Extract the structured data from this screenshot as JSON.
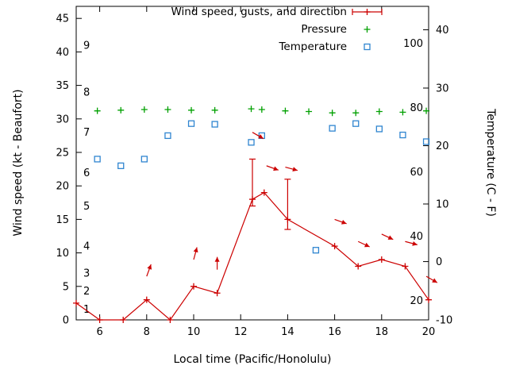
{
  "page": {
    "background": "#ffffff"
  },
  "legend": {
    "items": [
      {
        "label": "Wind speed, gusts, and direction",
        "marker": "errorbar-line",
        "color": "#cc0000"
      },
      {
        "label": "Pressure",
        "marker": "plus",
        "color": "#00a000"
      },
      {
        "label": "Temperature",
        "marker": "open-square",
        "color": "#2f85d0"
      }
    ]
  },
  "chart_data": {
    "type": "line",
    "title": "",
    "xlabel": "Local time (Pacific/Honolulu)",
    "ylabel_left": "Wind speed (kt - Beaufort)",
    "ylabel_right": "Temperature (C - F)",
    "xlim": [
      5,
      20
    ],
    "x_ticks": [
      6,
      8,
      10,
      12,
      14,
      16,
      18,
      20
    ],
    "ylim_left": [
      0,
      46.8
    ],
    "y_ticks_left": [
      0,
      5,
      10,
      15,
      20,
      25,
      30,
      35,
      40,
      45
    ],
    "beaufort_labels": [
      {
        "label": "1",
        "kt": 1.6
      },
      {
        "label": "2",
        "kt": 4.3
      },
      {
        "label": "3",
        "kt": 7
      },
      {
        "label": "4",
        "kt": 11
      },
      {
        "label": "5",
        "kt": 17
      },
      {
        "label": "6",
        "kt": 22
      },
      {
        "label": "7",
        "kt": 28
      },
      {
        "label": "8",
        "kt": 34
      },
      {
        "label": "9",
        "kt": 41
      }
    ],
    "y_ticks_right_celsius": [
      {
        "label": "-10",
        "kt": 0
      },
      {
        "label": "0",
        "kt": 8.7
      },
      {
        "label": "10",
        "kt": 17.3
      },
      {
        "label": "20",
        "kt": 26.0
      },
      {
        "label": "30",
        "kt": 34.6
      },
      {
        "label": "40",
        "kt": 43.3
      }
    ],
    "fahrenheit_labels": [
      {
        "label": "20",
        "kt": 2.9
      },
      {
        "label": "40",
        "kt": 12.5
      },
      {
        "label": "60",
        "kt": 22.1
      },
      {
        "label": "80",
        "kt": 31.7
      },
      {
        "label": "100",
        "kt": 41.3
      }
    ],
    "grid": false,
    "legend_position": "top-right-inside",
    "note": "All series y-values are plotted in left-axis (kt) coordinates as read from the pixels",
    "series": [
      {
        "name": "Wind speed, gusts, and direction",
        "type": "line",
        "marker": "plus",
        "color": "#cc0000",
        "points": [
          [
            5,
            2.5
          ],
          [
            6,
            0
          ],
          [
            7,
            0
          ],
          [
            8,
            3
          ],
          [
            9,
            0
          ],
          [
            10,
            5
          ],
          [
            11,
            4
          ],
          [
            12.5,
            18
          ],
          [
            13,
            19
          ],
          [
            14,
            15
          ],
          [
            16,
            11
          ],
          [
            17,
            8
          ],
          [
            18,
            9
          ],
          [
            19,
            8
          ],
          [
            20,
            3
          ]
        ],
        "gust_bars": [
          {
            "x": 12.5,
            "low": 17,
            "high": 24
          },
          {
            "x": 14,
            "low": 13.5,
            "high": 21
          }
        ],
        "direction_arrows": [
          {
            "x": 8,
            "y": 6.5,
            "angle": 70
          },
          {
            "x": 10,
            "y": 9,
            "angle": 75
          },
          {
            "x": 11,
            "y": 7.5,
            "angle": 90
          },
          {
            "x": 12.5,
            "y": 28,
            "angle": -30
          },
          {
            "x": 13.1,
            "y": 23,
            "angle": -20
          },
          {
            "x": 13.9,
            "y": 22.8,
            "angle": -15
          },
          {
            "x": 16,
            "y": 15,
            "angle": -20
          },
          {
            "x": 17,
            "y": 11.7,
            "angle": -25
          },
          {
            "x": 18,
            "y": 12.8,
            "angle": -25
          },
          {
            "x": 19,
            "y": 11.7,
            "angle": -15
          },
          {
            "x": 19.9,
            "y": 6.5,
            "angle": -30
          }
        ]
      },
      {
        "name": "Pressure",
        "type": "scatter",
        "marker": "plus",
        "color": "#00a000",
        "points": [
          [
            5.9,
            31.2
          ],
          [
            6.9,
            31.3
          ],
          [
            7.9,
            31.4
          ],
          [
            8.9,
            31.4
          ],
          [
            9.9,
            31.3
          ],
          [
            10.9,
            31.3
          ],
          [
            12.45,
            31.5
          ],
          [
            12.9,
            31.4
          ],
          [
            13.9,
            31.2
          ],
          [
            14.9,
            31.1
          ],
          [
            15.9,
            30.9
          ],
          [
            16.9,
            30.9
          ],
          [
            17.9,
            31.1
          ],
          [
            18.9,
            31.0
          ],
          [
            19.9,
            31.2
          ]
        ]
      },
      {
        "name": "Temperature",
        "type": "scatter",
        "marker": "open-square",
        "color": "#2f85d0",
        "points": [
          [
            5.9,
            24
          ],
          [
            6.9,
            23
          ],
          [
            7.9,
            24
          ],
          [
            8.9,
            27.5
          ],
          [
            9.9,
            29.3
          ],
          [
            10.9,
            29.2
          ],
          [
            12.45,
            26.5
          ],
          [
            12.9,
            27.5
          ],
          [
            15.2,
            10.4
          ],
          [
            15.9,
            28.6
          ],
          [
            16.9,
            29.3
          ],
          [
            17.9,
            28.5
          ],
          [
            18.9,
            27.6
          ],
          [
            19.9,
            26.6
          ]
        ]
      }
    ]
  }
}
